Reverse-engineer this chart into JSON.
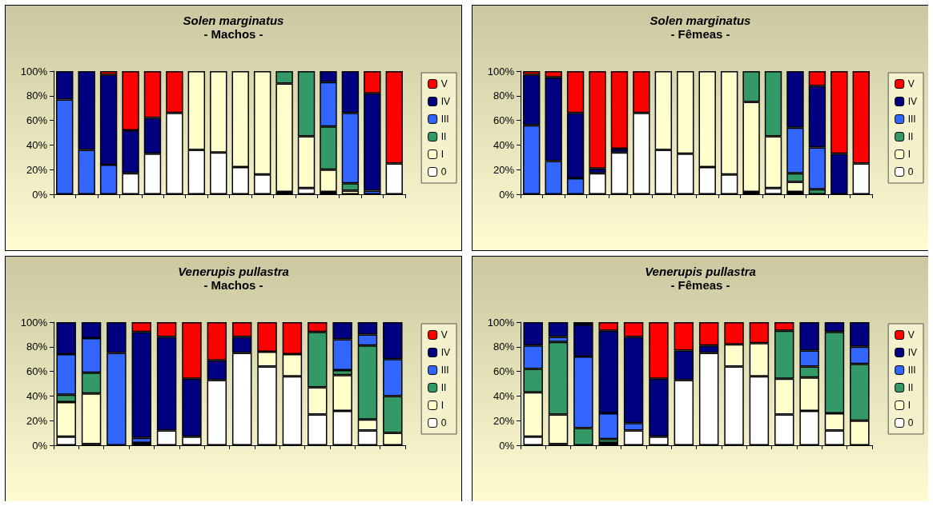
{
  "chart_data": [
    {
      "type": "bar",
      "title": "Solen marginatus",
      "subtitle": "- Machos -",
      "stacked": true,
      "legend": "right",
      "grid": false,
      "ylim": [
        0,
        100
      ],
      "yticks": [
        {
          "value": 0,
          "label": "0%"
        },
        {
          "value": 20,
          "label": "20%"
        },
        {
          "value": 40,
          "label": "40%"
        },
        {
          "value": 60,
          "label": "60%"
        },
        {
          "value": 80,
          "label": "80%"
        },
        {
          "value": 100,
          "label": "100%"
        }
      ],
      "categories": [
        null,
        null,
        null,
        null,
        null,
        null,
        null,
        null,
        null,
        null,
        null,
        null,
        null,
        null,
        null,
        null
      ],
      "series": [
        {
          "name": "0",
          "color": "#ffffff",
          "values": [
            null,
            null,
            null,
            17,
            33,
            66,
            36,
            34,
            22,
            16,
            2,
            5,
            2,
            null,
            null,
            25
          ]
        },
        {
          "name": "I",
          "color": "#ffffcc",
          "values": [
            null,
            null,
            null,
            null,
            null,
            null,
            64,
            66,
            78,
            84,
            88,
            42,
            18,
            3,
            null,
            null
          ]
        },
        {
          "name": "II",
          "color": "#339966",
          "values": [
            null,
            null,
            null,
            null,
            null,
            null,
            null,
            null,
            null,
            null,
            10,
            53,
            35,
            6,
            null,
            null
          ]
        },
        {
          "name": "III",
          "color": "#3366ff",
          "values": [
            77,
            36,
            24,
            null,
            null,
            null,
            null,
            null,
            null,
            null,
            null,
            null,
            36,
            57,
            3,
            null
          ]
        },
        {
          "name": "IV",
          "color": "#000080",
          "values": [
            23,
            64,
            73,
            35,
            29,
            null,
            null,
            null,
            null,
            null,
            null,
            null,
            9,
            34,
            79,
            null
          ]
        },
        {
          "name": "V",
          "color": "#ff0000",
          "values": [
            null,
            null,
            3,
            48,
            38,
            34,
            null,
            null,
            null,
            null,
            null,
            null,
            null,
            null,
            18,
            75
          ]
        }
      ]
    },
    {
      "type": "bar",
      "title": "Solen marginatus",
      "subtitle": "- Fêmeas -",
      "stacked": true,
      "legend": "right",
      "grid": false,
      "ylim": [
        0,
        100
      ],
      "yticks": [
        {
          "value": 0,
          "label": "0%"
        },
        {
          "value": 20,
          "label": "20%"
        },
        {
          "value": 40,
          "label": "40%"
        },
        {
          "value": 60,
          "label": "60%"
        },
        {
          "value": 80,
          "label": "80%"
        },
        {
          "value": 100,
          "label": "100%"
        }
      ],
      "categories": [
        null,
        null,
        null,
        null,
        null,
        null,
        null,
        null,
        null,
        null,
        null,
        null,
        null,
        null,
        null,
        null
      ],
      "series": [
        {
          "name": "0",
          "color": "#ffffff",
          "values": [
            null,
            null,
            null,
            17,
            34,
            66,
            36,
            33,
            22,
            16,
            2,
            5,
            2,
            null,
            null,
            25
          ]
        },
        {
          "name": "I",
          "color": "#ffffcc",
          "values": [
            null,
            null,
            null,
            null,
            null,
            null,
            64,
            67,
            78,
            84,
            73,
            42,
            8,
            null,
            null,
            null
          ]
        },
        {
          "name": "II",
          "color": "#339966",
          "values": [
            null,
            null,
            null,
            null,
            null,
            null,
            null,
            null,
            null,
            null,
            25,
            53,
            7,
            4,
            null,
            null
          ]
        },
        {
          "name": "III",
          "color": "#3366ff",
          "values": [
            56,
            27,
            13,
            null,
            null,
            null,
            null,
            null,
            null,
            null,
            null,
            null,
            37,
            34,
            null,
            null
          ]
        },
        {
          "name": "IV",
          "color": "#000080",
          "values": [
            41,
            68,
            53,
            4,
            3,
            null,
            null,
            null,
            null,
            null,
            null,
            null,
            46,
            50,
            33,
            null
          ]
        },
        {
          "name": "V",
          "color": "#ff0000",
          "values": [
            3,
            5,
            34,
            79,
            63,
            34,
            null,
            null,
            null,
            null,
            null,
            null,
            null,
            12,
            67,
            75
          ]
        }
      ]
    },
    {
      "type": "bar",
      "title": "Venerupis pullastra",
      "subtitle": "- Machos -",
      "stacked": true,
      "legend": "right",
      "grid": false,
      "ylim": [
        0,
        100
      ],
      "yticks": [
        {
          "value": 0,
          "label": "0%"
        },
        {
          "value": 20,
          "label": "20%"
        },
        {
          "value": 40,
          "label": "40%"
        },
        {
          "value": 60,
          "label": "60%"
        },
        {
          "value": 80,
          "label": "80%"
        },
        {
          "value": 100,
          "label": "100%"
        }
      ],
      "categories": [
        null,
        null,
        null,
        null,
        null,
        null,
        null,
        null,
        null,
        null,
        null,
        null,
        null,
        null
      ],
      "series": [
        {
          "name": "0",
          "color": "#ffffff",
          "values": [
            7,
            1,
            null,
            2,
            12,
            7,
            53,
            75,
            64,
            56,
            25,
            28,
            12,
            null
          ]
        },
        {
          "name": "I",
          "color": "#ffffcc",
          "values": [
            28,
            41,
            null,
            null,
            null,
            null,
            null,
            null,
            12,
            18,
            22,
            29,
            9,
            10
          ]
        },
        {
          "name": "II",
          "color": "#339966",
          "values": [
            6,
            17,
            null,
            null,
            null,
            null,
            null,
            null,
            null,
            null,
            45,
            4,
            60,
            30
          ]
        },
        {
          "name": "III",
          "color": "#3366ff",
          "values": [
            33,
            28,
            75,
            4,
            null,
            null,
            null,
            null,
            null,
            null,
            null,
            25,
            9,
            30
          ]
        },
        {
          "name": "IV",
          "color": "#000080",
          "values": [
            26,
            13,
            25,
            86,
            76,
            47,
            16,
            13,
            null,
            null,
            null,
            14,
            10,
            30
          ]
        },
        {
          "name": "V",
          "color": "#ff0000",
          "values": [
            null,
            null,
            null,
            8,
            12,
            46,
            31,
            12,
            24,
            26,
            8,
            null,
            null,
            null
          ]
        }
      ]
    },
    {
      "type": "bar",
      "title": "Venerupis pullastra",
      "subtitle": "- Fêmeas -",
      "stacked": true,
      "legend": "right",
      "grid": false,
      "ylim": [
        0,
        100
      ],
      "yticks": [
        {
          "value": 0,
          "label": "0%"
        },
        {
          "value": 20,
          "label": "20%"
        },
        {
          "value": 40,
          "label": "40%"
        },
        {
          "value": 60,
          "label": "60%"
        },
        {
          "value": 80,
          "label": "80%"
        },
        {
          "value": 100,
          "label": "100%"
        }
      ],
      "categories": [
        null,
        null,
        null,
        null,
        null,
        null,
        null,
        null,
        null,
        null,
        null,
        null,
        null,
        null
      ],
      "series": [
        {
          "name": "0",
          "color": "#ffffff",
          "values": [
            7,
            1,
            null,
            2,
            12,
            7,
            53,
            75,
            64,
            56,
            25,
            28,
            12,
            null
          ]
        },
        {
          "name": "I",
          "color": "#ffffcc",
          "values": [
            36,
            24,
            null,
            null,
            null,
            null,
            null,
            null,
            18,
            27,
            29,
            27,
            14,
            20
          ]
        },
        {
          "name": "II",
          "color": "#339966",
          "values": [
            19,
            59,
            14,
            3,
            null,
            null,
            null,
            null,
            null,
            null,
            39,
            9,
            66,
            46
          ]
        },
        {
          "name": "III",
          "color": "#3366ff",
          "values": [
            19,
            4,
            58,
            21,
            6,
            null,
            null,
            null,
            null,
            null,
            null,
            13,
            null,
            14
          ]
        },
        {
          "name": "IV",
          "color": "#000080",
          "values": [
            19,
            12,
            26,
            67,
            70,
            47,
            24,
            6,
            null,
            null,
            null,
            23,
            8,
            20
          ]
        },
        {
          "name": "V",
          "color": "#ff0000",
          "values": [
            null,
            null,
            2,
            7,
            12,
            46,
            23,
            19,
            18,
            17,
            7,
            null,
            null,
            null
          ]
        }
      ]
    }
  ]
}
